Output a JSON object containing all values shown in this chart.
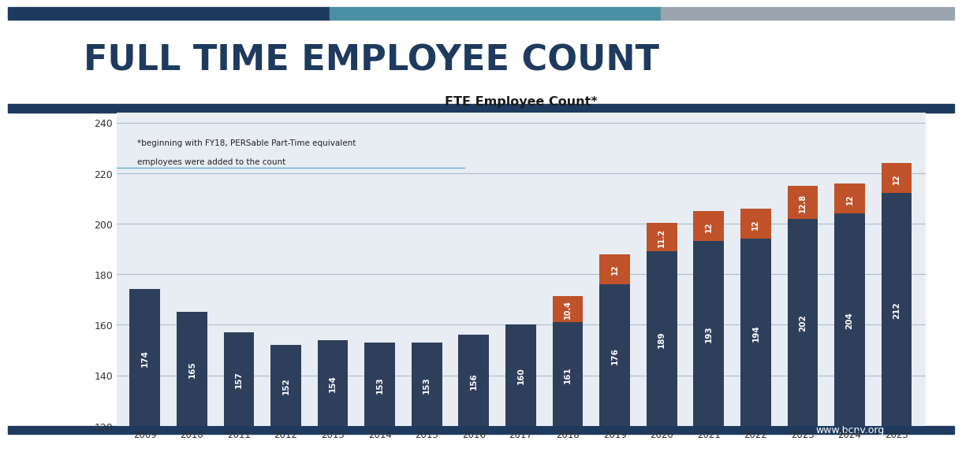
{
  "years": [
    "2009",
    "2010",
    "2011",
    "2012",
    "2013",
    "2014",
    "2015",
    "2016",
    "2017",
    "2018",
    "2019",
    "2020",
    "2021",
    "2022",
    "2023",
    "2024",
    "2025"
  ],
  "base_values": [
    174,
    165,
    157,
    152,
    154,
    153,
    153,
    156,
    160,
    161,
    176,
    189,
    193,
    194,
    202,
    204,
    212
  ],
  "part_time_values": [
    0,
    0,
    0,
    0,
    0,
    0,
    0,
    0,
    0,
    10.4,
    12,
    11.2,
    12,
    12,
    12.8,
    12,
    12
  ],
  "base_color": "#2e3f5c",
  "part_time_color": "#c0522a",
  "background_color": "#ffffff",
  "chart_bg_color": "#e8edf4",
  "title": "FTE Employee Count*",
  "annotation_line1": "*beginning with FY18, PERSable Part-Time equivalent",
  "annotation_line2": "employees were added to the count",
  "ylim_min": 120,
  "ylim_max": 244,
  "yticks": [
    120,
    140,
    160,
    180,
    200,
    220,
    240
  ],
  "header_title": "FULL TIME EMPLOYEE COUNT",
  "header_color1": "#1e3a5f",
  "header_color2": "#4a8fa3",
  "header_color3": "#9aa5b0",
  "footer_color": "#1e3a5f",
  "website": "www.bcnv.org",
  "grid_color": "#aabdd0",
  "grid_linewidth": 0.8,
  "bar_label_fontsize": 7.5,
  "pt_label_fontsize": 7.0,
  "annotation_line_color": "#6ab0c8"
}
